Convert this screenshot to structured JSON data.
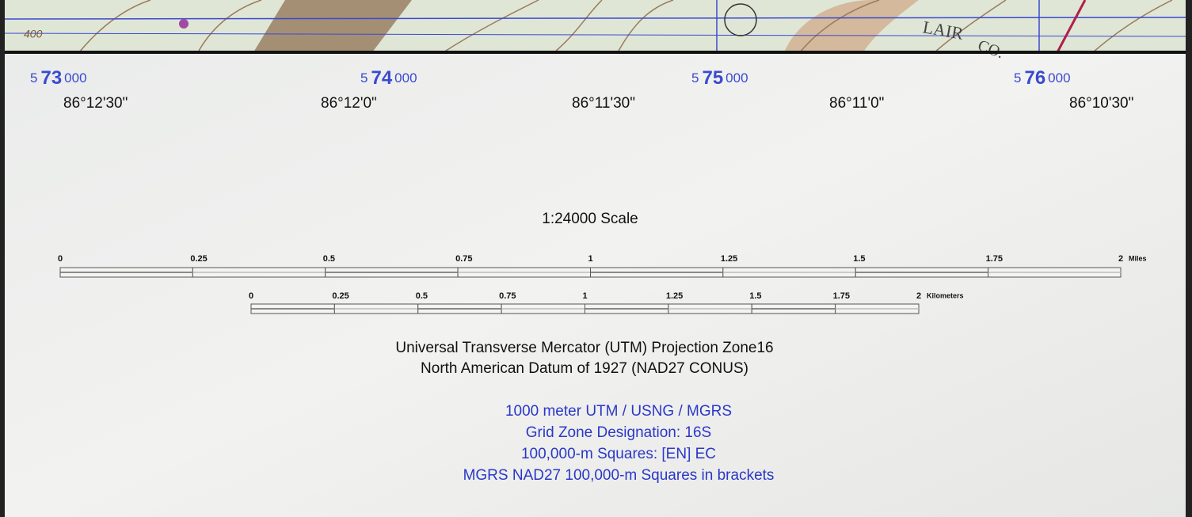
{
  "map_margin": {
    "map_labels": [
      "400",
      "LAIR",
      "CO."
    ],
    "utm_labels": [
      {
        "prefix": "5",
        "major": "73",
        "suffix": "000"
      },
      {
        "prefix": "5",
        "major": "74",
        "suffix": "000"
      },
      {
        "prefix": "5",
        "major": "75",
        "suffix": "000"
      },
      {
        "prefix": "5",
        "major": "76",
        "suffix": "000"
      }
    ],
    "longitude_labels": [
      "86°12'30\"",
      "86°12'0\"",
      "86°11'30\"",
      "86°11'0\"",
      "86°10'30\""
    ],
    "scale_title": "1:24000 Scale",
    "miles": {
      "labels": [
        "0",
        "0.25",
        "0.5",
        "0.75",
        "1",
        "1.25",
        "1.5",
        "1.75",
        "2"
      ],
      "unit": "Miles"
    },
    "kilometers": {
      "labels": [
        "0",
        "0.25",
        "0.5",
        "0.75",
        "1",
        "1.25",
        "1.5",
        "1.75",
        "2"
      ],
      "unit": "Kilometers"
    },
    "projection": [
      "Universal Transverse Mercator (UTM) Projection Zone16",
      "North American Datum of 1927 (NAD27 CONUS)"
    ],
    "grid_info": [
      "1000 meter UTM / USNG / MGRS",
      "Grid Zone Designation: 16S",
      "100,000-m Squares: [EN] EC",
      "MGRS NAD27 100,000-m Squares in brackets"
    ]
  }
}
